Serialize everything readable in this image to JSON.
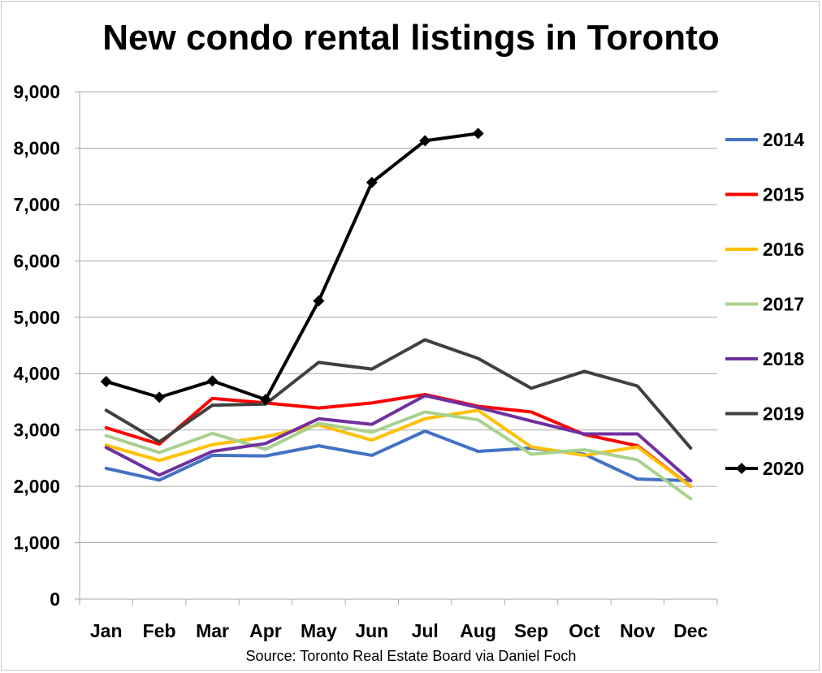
{
  "chart_data": {
    "type": "line",
    "title": "New condo rental listings in Toronto",
    "source": "Source: Toronto Real Estate Board via Daniel Foch",
    "categories": [
      "Jan",
      "Feb",
      "Mar",
      "Apr",
      "May",
      "Jun",
      "Jul",
      "Aug",
      "Sep",
      "Oct",
      "Nov",
      "Dec"
    ],
    "ylim": [
      0,
      9000
    ],
    "yticks": [
      "0",
      "1,000",
      "2,000",
      "3,000",
      "4,000",
      "5,000",
      "6,000",
      "7,000",
      "8,000",
      "9,000"
    ],
    "grid": true,
    "legend_position": "right",
    "series": [
      {
        "name": "2014",
        "color": "#4472c4",
        "marker": "none",
        "values": [
          2320,
          2110,
          2550,
          2540,
          2720,
          2550,
          2980,
          2620,
          2680,
          2570,
          2130,
          2100
        ]
      },
      {
        "name": "2015",
        "color": "#ff0000",
        "marker": "none",
        "values": [
          3040,
          2750,
          3560,
          3480,
          3390,
          3480,
          3630,
          3420,
          3320,
          2920,
          2720,
          2000
        ]
      },
      {
        "name": "2016",
        "color": "#ffc000",
        "marker": "none",
        "values": [
          2730,
          2460,
          2740,
          2880,
          3090,
          2820,
          3200,
          3350,
          2700,
          2550,
          2700,
          2000
        ]
      },
      {
        "name": "2017",
        "color": "#a9d18e",
        "marker": "none",
        "values": [
          2900,
          2600,
          2940,
          2660,
          3120,
          2960,
          3320,
          3180,
          2570,
          2650,
          2470,
          1780
        ]
      },
      {
        "name": "2018",
        "color": "#7030a0",
        "marker": "none",
        "values": [
          2690,
          2200,
          2620,
          2760,
          3200,
          3100,
          3610,
          3400,
          3160,
          2930,
          2930,
          2100
        ]
      },
      {
        "name": "2019",
        "color": "#404040",
        "marker": "none",
        "values": [
          3350,
          2790,
          3440,
          3460,
          4200,
          4080,
          4600,
          4270,
          3740,
          4040,
          3780,
          2680
        ]
      },
      {
        "name": "2020",
        "color": "#000000",
        "marker": "diamond",
        "values": [
          3860,
          3580,
          3870,
          3540,
          5290,
          7390,
          8130,
          8260,
          null,
          null,
          null,
          null
        ]
      }
    ]
  }
}
